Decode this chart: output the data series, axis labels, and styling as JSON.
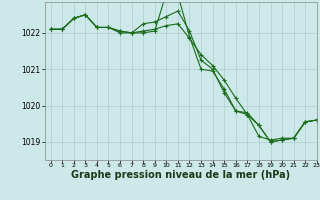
{
  "background_color": "#cce8e8",
  "grid_color": "#b0cccc",
  "line_color": "#1a6b1a",
  "xlabel": "Graphe pression niveau de la mer (hPa)",
  "xlabel_fontsize": 7,
  "ylabel_ticks": [
    1019,
    1020,
    1021,
    1022
  ],
  "xlim": [
    -0.5,
    23
  ],
  "ylim": [
    1018.5,
    1022.85
  ],
  "xticks": [
    0,
    1,
    2,
    3,
    4,
    5,
    6,
    7,
    8,
    9,
    10,
    11,
    12,
    13,
    14,
    15,
    16,
    17,
    18,
    19,
    20,
    21,
    22,
    23
  ],
  "line1_x": [
    0,
    1,
    2,
    3,
    4,
    5,
    6,
    7,
    8,
    9,
    10,
    11,
    12,
    13,
    14,
    15,
    16,
    17,
    18,
    19,
    20,
    21,
    22,
    23
  ],
  "line1_y": [
    1022.1,
    1022.1,
    1022.4,
    1022.5,
    1022.15,
    1022.15,
    1022.05,
    1022.0,
    1022.05,
    1022.1,
    1022.2,
    1022.25,
    1021.85,
    1021.4,
    1021.1,
    1020.7,
    1020.2,
    1019.75,
    1019.15,
    1019.05,
    1019.1,
    1019.1,
    1019.55,
    1019.6
  ],
  "line2_x": [
    0,
    1,
    2,
    3,
    4,
    5,
    6,
    7,
    8,
    9,
    10,
    11,
    12,
    13,
    14,
    15,
    16,
    17,
    18,
    19,
    20,
    21,
    22,
    23
  ],
  "line2_y": [
    1022.1,
    1022.1,
    1022.4,
    1022.5,
    1022.15,
    1022.15,
    1022.0,
    1022.0,
    1022.25,
    1022.3,
    1022.45,
    1022.6,
    1022.05,
    1021.25,
    1021.0,
    1020.35,
    1019.85,
    1019.75,
    1019.45,
    1019.0,
    1019.05,
    1019.1,
    1019.55,
    1019.6
  ],
  "line3_x": [
    0,
    1,
    2,
    3,
    4,
    5,
    6,
    7,
    8,
    9,
    10,
    11,
    12,
    13,
    14,
    15,
    16,
    17,
    18,
    19,
    20,
    21,
    22,
    23
  ],
  "line3_y": [
    1022.1,
    1022.1,
    1022.4,
    1022.5,
    1022.15,
    1022.15,
    1022.05,
    1022.0,
    1022.0,
    1022.05,
    1023.1,
    1023.05,
    1021.9,
    1021.0,
    1020.95,
    1020.45,
    1019.85,
    1019.8,
    1019.45,
    1019.0,
    1019.05,
    1019.1,
    1019.55,
    1019.6
  ]
}
